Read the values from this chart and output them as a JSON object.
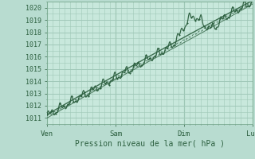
{
  "title": "",
  "xlabel": "Pression niveau de la mer( hPa )",
  "ylabel": "",
  "bg_color": "#b8dcd0",
  "plot_bg_color": "#c8e8dc",
  "grid_color": "#a0c8b8",
  "tick_label_color": "#2d6040",
  "axis_label_color": "#2d6040",
  "line_color": "#2d6040",
  "ylim": [
    1010.5,
    1020.5
  ],
  "xlim": [
    0,
    72
  ],
  "yticks": [
    1011,
    1012,
    1013,
    1014,
    1015,
    1016,
    1017,
    1018,
    1019,
    1020
  ],
  "xtick_positions": [
    0,
    24,
    48,
    72
  ],
  "xtick_labels": [
    "Ven",
    "Sam",
    "Dim",
    "Lun"
  ],
  "figsize": [
    3.2,
    2.0
  ],
  "dpi": 100
}
